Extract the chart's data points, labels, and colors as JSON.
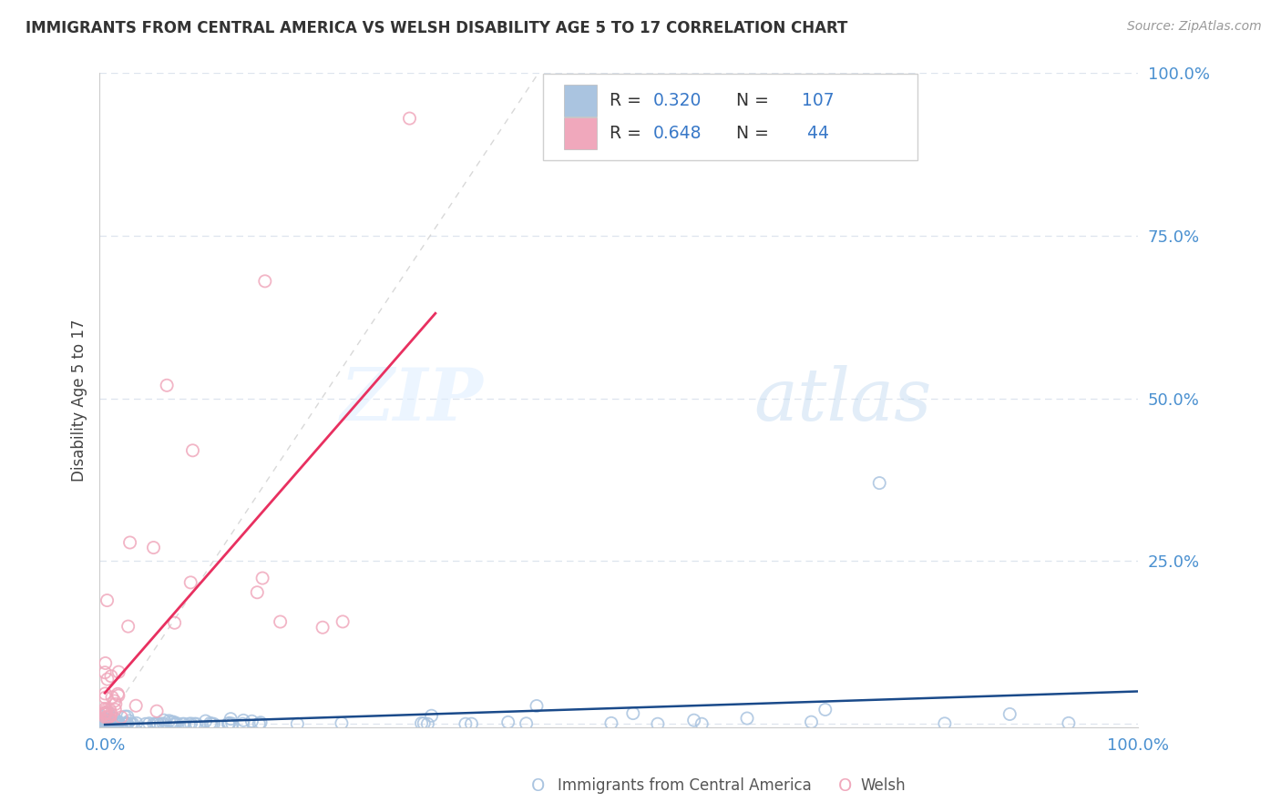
{
  "title": "IMMIGRANTS FROM CENTRAL AMERICA VS WELSH DISABILITY AGE 5 TO 17 CORRELATION CHART",
  "source": "Source: ZipAtlas.com",
  "ylabel": "Disability Age 5 to 17",
  "blue_R": 0.32,
  "blue_N": 107,
  "pink_R": 0.648,
  "pink_N": 44,
  "blue_color": "#aac4e0",
  "pink_color": "#f0a8bc",
  "blue_line_color": "#1a4a8a",
  "pink_line_color": "#e83060",
  "diagonal_color": "#c8c8c8",
  "watermark_zip": "ZIP",
  "watermark_atlas": "atlas",
  "legend_color": "#3878c8",
  "background_color": "#ffffff",
  "grid_color": "#dde4ee",
  "tick_color": "#4a90d0",
  "bottom_legend_blue": "Immigrants from Central America",
  "bottom_legend_pink": "Welsh"
}
